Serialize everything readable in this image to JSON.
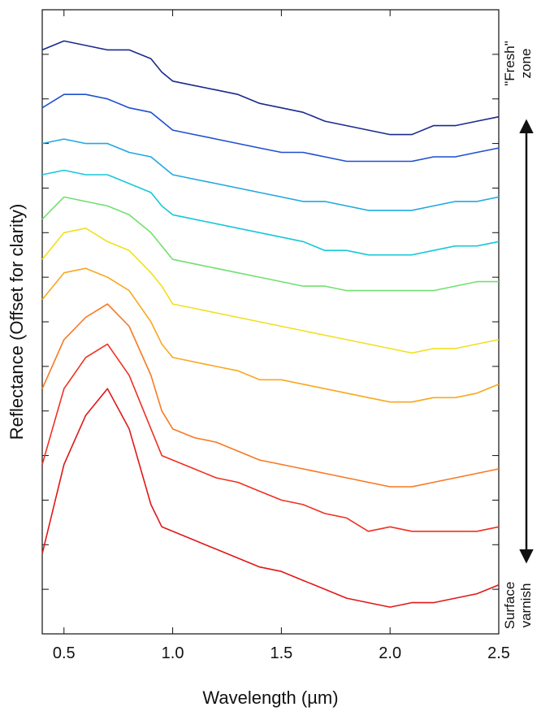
{
  "chart_data": {
    "type": "line",
    "xlabel": "Wavelength (µm)",
    "ylabel": "Reflectance (Offset for clarity)",
    "annotations": [
      {
        "lines": [
          "\"Fresh\"",
          "zone"
        ]
      },
      {
        "lines": [
          "Surface",
          "varnish"
        ]
      }
    ],
    "x": [
      0.4,
      0.5,
      0.6,
      0.7,
      0.8,
      0.9,
      0.95,
      1.0,
      1.1,
      1.2,
      1.3,
      1.4,
      1.5,
      1.6,
      1.7,
      1.8,
      1.9,
      2.0,
      2.1,
      2.2,
      2.3,
      2.4,
      2.5
    ],
    "xlim": [
      0.4,
      2.5
    ],
    "xticks": [
      0.5,
      {
        "value": 1,
        "label": "1.0"
      },
      1.5,
      {
        "value": 2,
        "label": "2.0"
      },
      2.5
    ],
    "ylim": [
      0,
      14
    ],
    "yticks": [
      0,
      1,
      2,
      3,
      4,
      5,
      6,
      7,
      8,
      9,
      10,
      11,
      12,
      13,
      14
    ],
    "series": [
      {
        "color": "#1a2a8c",
        "values": [
          13.1,
          13.3,
          13.2,
          13.1,
          13.1,
          12.9,
          12.6,
          12.4,
          12.3,
          12.2,
          12.1,
          11.9,
          11.8,
          11.7,
          11.5,
          11.4,
          11.3,
          11.2,
          11.2,
          11.4,
          11.4,
          11.5,
          11.6
        ]
      },
      {
        "color": "#1f4fd0",
        "values": [
          11.8,
          12.1,
          12.1,
          12.0,
          11.8,
          11.7,
          11.5,
          11.3,
          11.2,
          11.1,
          11.0,
          10.9,
          10.8,
          10.8,
          10.7,
          10.6,
          10.6,
          10.6,
          10.6,
          10.7,
          10.7,
          10.8,
          10.9
        ]
      },
      {
        "color": "#1fa8e0",
        "values": [
          11.0,
          11.1,
          11.0,
          11.0,
          10.8,
          10.7,
          10.5,
          10.3,
          10.2,
          10.1,
          10.0,
          9.9,
          9.8,
          9.7,
          9.7,
          9.6,
          9.5,
          9.5,
          9.5,
          9.6,
          9.7,
          9.7,
          9.8
        ]
      },
      {
        "color": "#18c8d8",
        "values": [
          10.3,
          10.4,
          10.3,
          10.3,
          10.1,
          9.9,
          9.6,
          9.4,
          9.3,
          9.2,
          9.1,
          9.0,
          8.9,
          8.8,
          8.6,
          8.6,
          8.5,
          8.5,
          8.5,
          8.6,
          8.7,
          8.7,
          8.8
        ]
      },
      {
        "color": "#70e070",
        "values": [
          9.3,
          9.8,
          9.7,
          9.6,
          9.4,
          9.0,
          8.7,
          8.4,
          8.3,
          8.2,
          8.1,
          8.0,
          7.9,
          7.8,
          7.8,
          7.7,
          7.7,
          7.7,
          7.7,
          7.7,
          7.8,
          7.9,
          7.9
        ]
      },
      {
        "color": "#f0e020",
        "values": [
          8.4,
          9.0,
          9.1,
          8.8,
          8.6,
          8.1,
          7.8,
          7.4,
          7.3,
          7.2,
          7.1,
          7.0,
          6.9,
          6.8,
          6.7,
          6.6,
          6.5,
          6.4,
          6.3,
          6.4,
          6.4,
          6.5,
          6.6
        ]
      },
      {
        "color": "#f8a820",
        "values": [
          7.5,
          8.1,
          8.2,
          8.0,
          7.7,
          7.0,
          6.5,
          6.2,
          6.1,
          6.0,
          5.9,
          5.7,
          5.7,
          5.6,
          5.5,
          5.4,
          5.3,
          5.2,
          5.2,
          5.3,
          5.3,
          5.4,
          5.6
        ]
      },
      {
        "color": "#f87820",
        "values": [
          5.5,
          6.6,
          7.1,
          7.4,
          6.9,
          5.8,
          5.0,
          4.6,
          4.4,
          4.3,
          4.1,
          3.9,
          3.8,
          3.7,
          3.6,
          3.5,
          3.4,
          3.3,
          3.3,
          3.4,
          3.5,
          3.6,
          3.7
        ]
      },
      {
        "color": "#f03020",
        "values": [
          3.8,
          5.5,
          6.2,
          6.5,
          5.8,
          4.6,
          4.0,
          3.9,
          3.7,
          3.5,
          3.4,
          3.2,
          3.0,
          2.9,
          2.7,
          2.6,
          2.3,
          2.4,
          2.3,
          2.3,
          2.3,
          2.3,
          2.4
        ]
      },
      {
        "color": "#e01818",
        "values": [
          1.8,
          3.8,
          4.9,
          5.5,
          4.6,
          2.9,
          2.4,
          2.3,
          2.1,
          1.9,
          1.7,
          1.5,
          1.4,
          1.2,
          1.0,
          0.8,
          0.7,
          0.6,
          0.7,
          0.7,
          0.8,
          0.9,
          1.1
        ]
      }
    ]
  }
}
